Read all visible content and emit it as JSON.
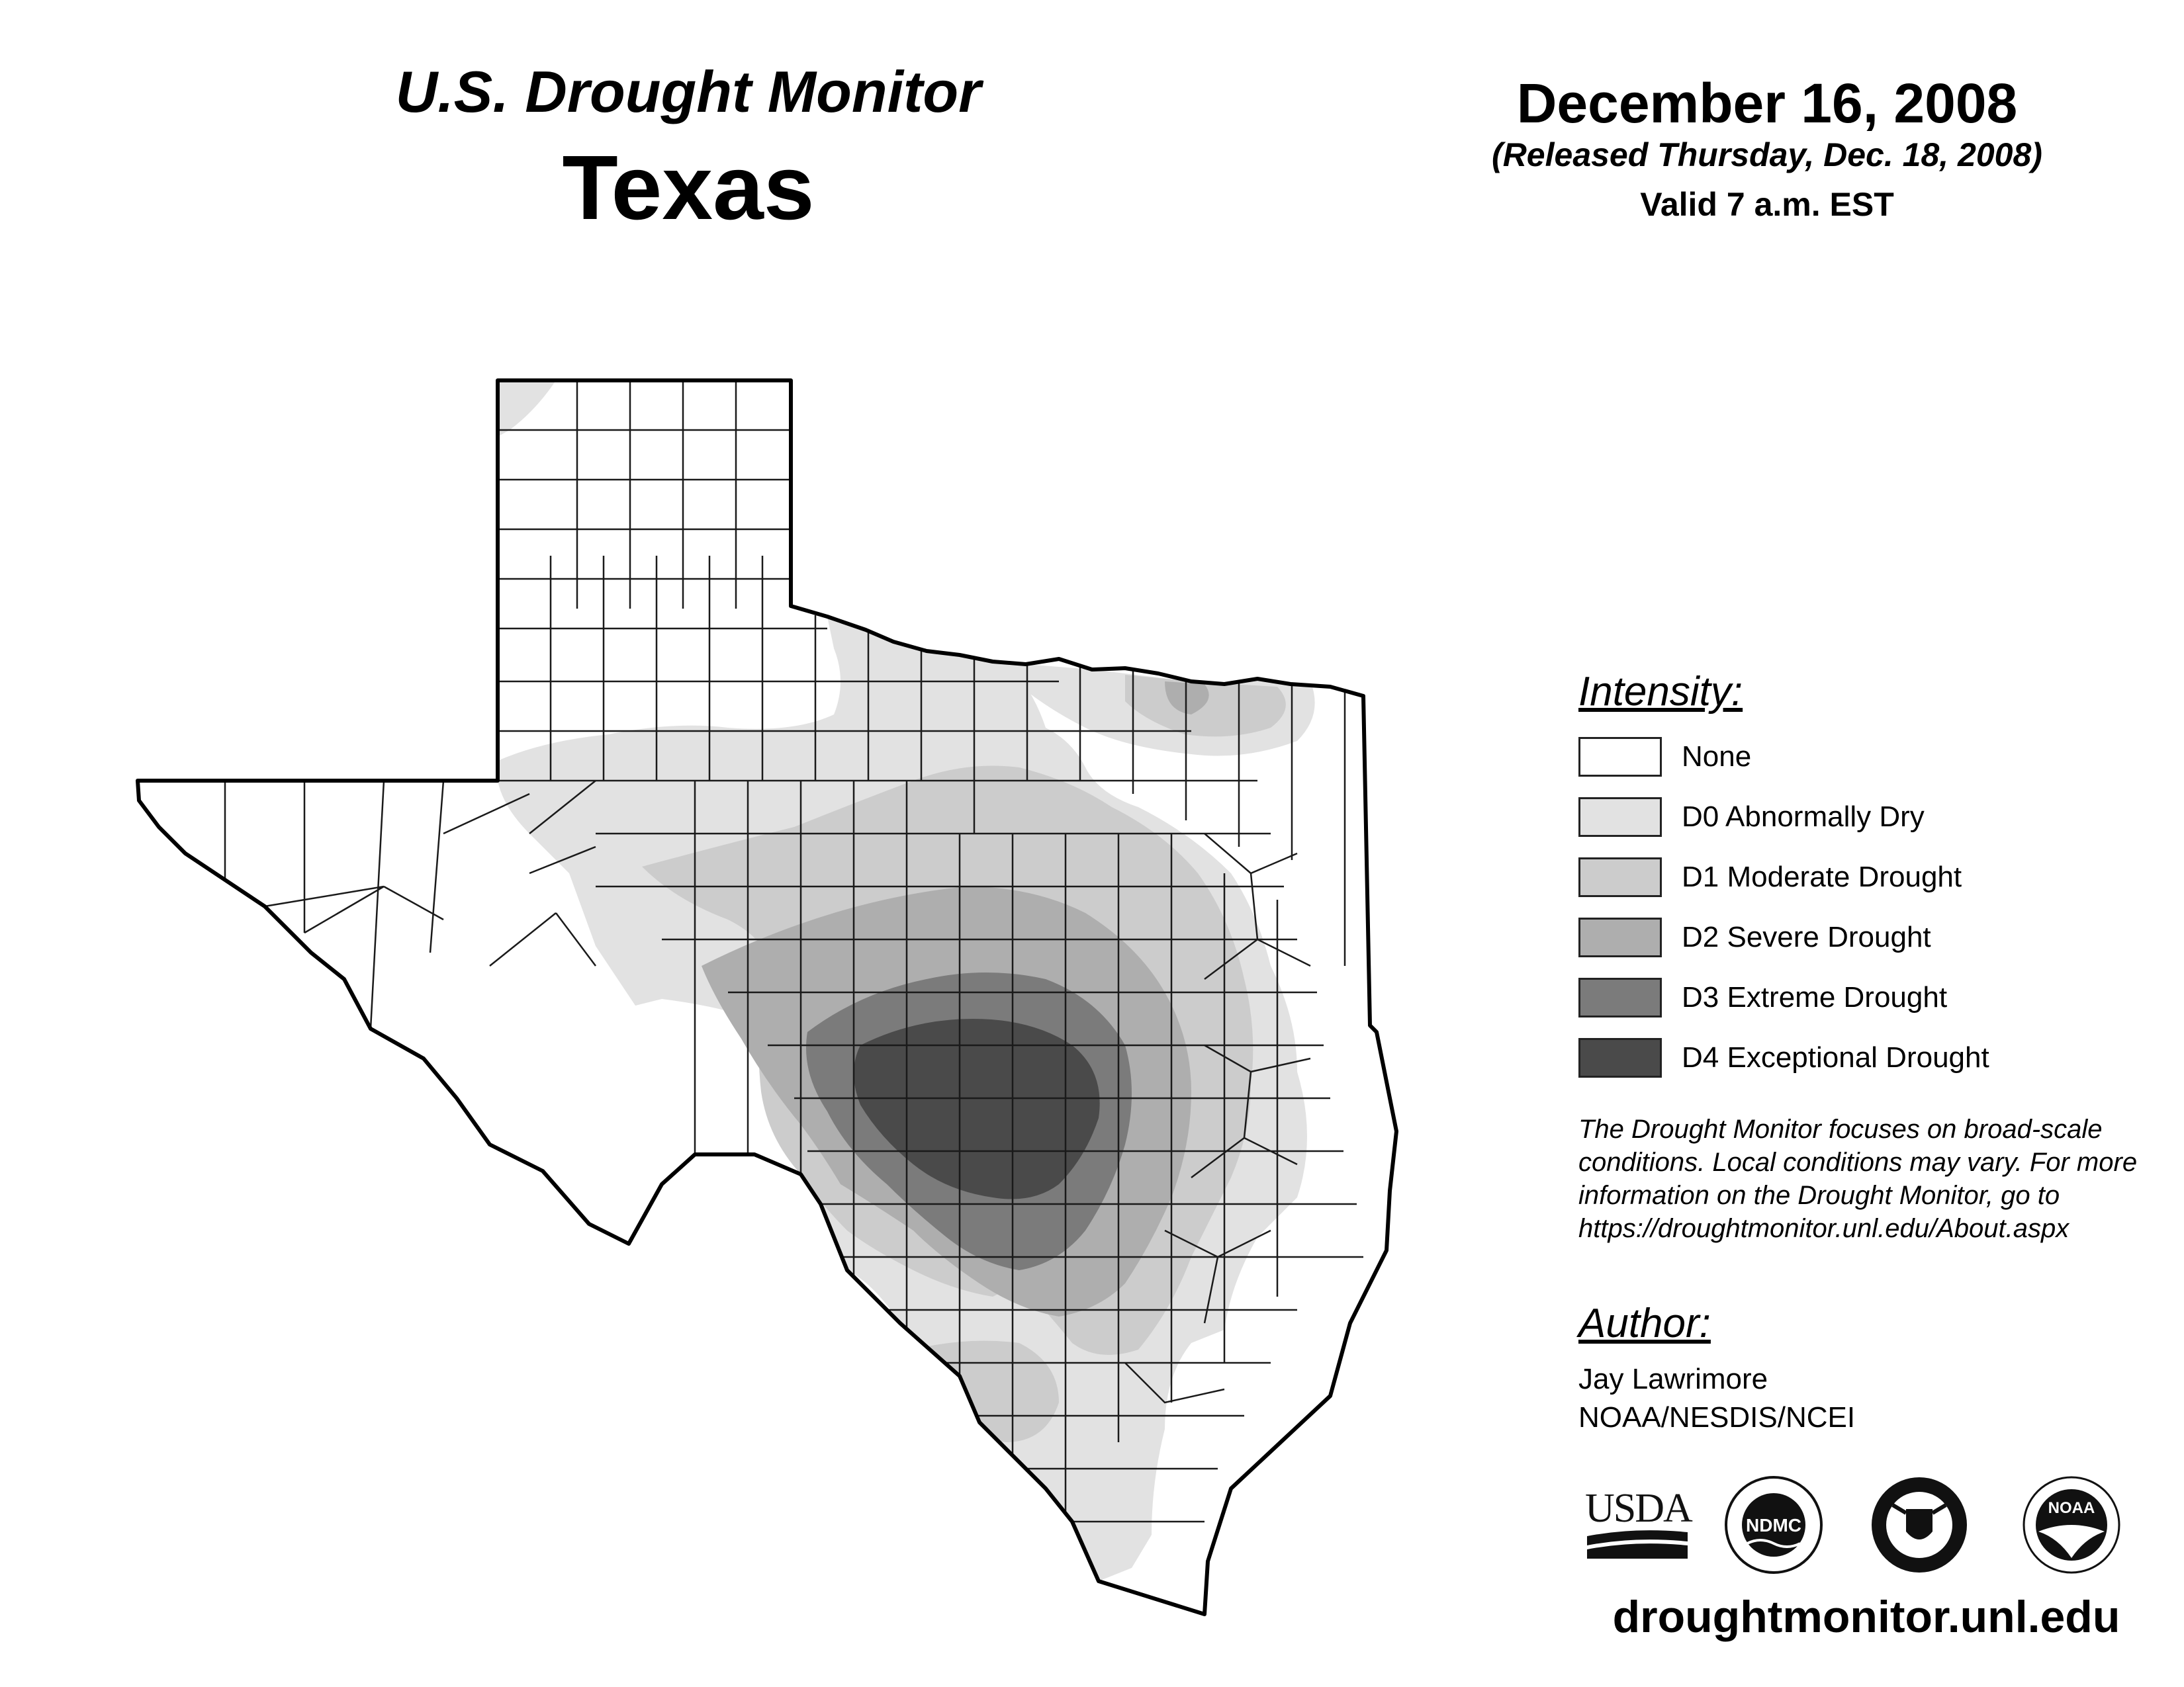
{
  "header": {
    "title": "U.S. Drought Monitor",
    "state": "Texas",
    "date": "December 16, 2008",
    "released": "(Released Thursday, Dec. 18, 2008)",
    "valid": "Valid 7 a.m. EST"
  },
  "legend": {
    "title": "Intensity:",
    "items": [
      {
        "label": "None",
        "color": "#ffffff"
      },
      {
        "label": "D0 Abnormally Dry",
        "color": "#e2e2e2"
      },
      {
        "label": "D1 Moderate Drought",
        "color": "#cccccc"
      },
      {
        "label": "D2 Severe Drought",
        "color": "#aeaeae"
      },
      {
        "label": "D3 Extreme Drought",
        "color": "#7b7b7b"
      },
      {
        "label": "D4 Exceptional Drought",
        "color": "#4a4a4a"
      }
    ]
  },
  "disclaimer": "The Drought Monitor focuses on broad-scale conditions. Local conditions may vary. For more information on the Drought Monitor, go to https://droughtmonitor.unl.edu/About.aspx",
  "author": {
    "title": "Author:",
    "name": "Jay Lawrimore",
    "org": "NOAA/NESDIS/NCEI"
  },
  "logos": {
    "usda": "USDA",
    "ndmc": "NDMC",
    "commerce_icon": "department-of-commerce-seal",
    "noaa": "NOAA"
  },
  "website": "droughtmonitor.unl.edu",
  "map": {
    "region": "Texas",
    "colors": {
      "outline": "#000000",
      "county_line": "#1a1a1a"
    }
  }
}
